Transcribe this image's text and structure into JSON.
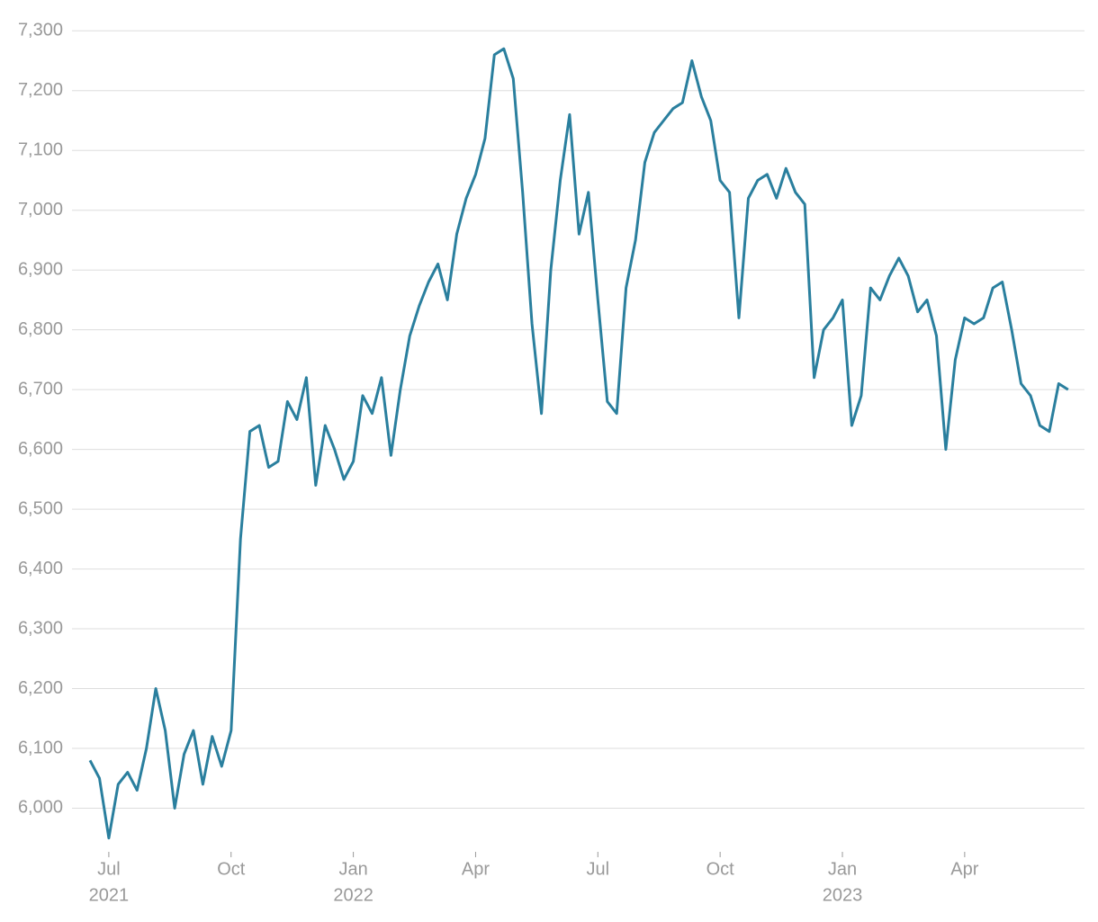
{
  "chart_data": {
    "type": "line",
    "categories": [
      null,
      null,
      "Jul",
      null,
      null,
      null,
      null,
      null,
      null,
      null,
      null,
      null,
      null,
      null,
      null,
      "Oct",
      null,
      null,
      null,
      null,
      null,
      null,
      null,
      null,
      null,
      null,
      null,
      null,
      "Jan",
      null,
      null,
      null,
      null,
      null,
      null,
      null,
      null,
      null,
      null,
      null,
      null,
      "Apr",
      null,
      null,
      null,
      null,
      null,
      null,
      null,
      null,
      null,
      null,
      null,
      null,
      "Jul",
      null,
      null,
      null,
      null,
      null,
      null,
      null,
      null,
      null,
      null,
      null,
      null,
      "Oct",
      null,
      null,
      null,
      null,
      null,
      null,
      null,
      null,
      null,
      null,
      null,
      null,
      "Jan",
      null,
      null,
      null,
      null,
      null,
      null,
      null,
      null,
      null,
      null,
      null,
      null,
      "Apr",
      null,
      null,
      null,
      null,
      null,
      null,
      null,
      null,
      null,
      null,
      null
    ],
    "x_sublabels": [
      null,
      null,
      "2021",
      null,
      null,
      null,
      null,
      null,
      null,
      null,
      null,
      null,
      null,
      null,
      null,
      null,
      null,
      null,
      null,
      null,
      null,
      null,
      null,
      null,
      null,
      null,
      null,
      null,
      "2022",
      null,
      null,
      null,
      null,
      null,
      null,
      null,
      null,
      null,
      null,
      null,
      null,
      null,
      null,
      null,
      null,
      null,
      null,
      null,
      null,
      null,
      null,
      null,
      null,
      null,
      null,
      null,
      null,
      null,
      null,
      null,
      null,
      null,
      null,
      null,
      null,
      null,
      null,
      null,
      null,
      null,
      null,
      null,
      null,
      null,
      null,
      null,
      null,
      null,
      null,
      null,
      "2023",
      null,
      null,
      null,
      null,
      null,
      null,
      null,
      null,
      null,
      null,
      null,
      null,
      null,
      null,
      null,
      null,
      null,
      null,
      null,
      null,
      null,
      null,
      null,
      null
    ],
    "series": [
      {
        "color": "#2a7f9e",
        "values": [
          6080,
          6050,
          5950,
          6040,
          6060,
          6030,
          6100,
          6200,
          6130,
          6000,
          6090,
          6130,
          6040,
          6120,
          6070,
          6130,
          6450,
          6630,
          6640,
          6570,
          6580,
          6680,
          6650,
          6720,
          6540,
          6640,
          6600,
          6550,
          6580,
          6690,
          6660,
          6720,
          6590,
          6700,
          6790,
          6840,
          6880,
          6910,
          6850,
          6960,
          7020,
          7060,
          7120,
          7260,
          7270,
          7220,
          7030,
          6810,
          6660,
          6900,
          7050,
          7160,
          6960,
          7030,
          6850,
          6680,
          6660,
          6870,
          6950,
          7080,
          7130,
          7150,
          7170,
          7180,
          7250,
          7190,
          7150,
          7050,
          7030,
          6820,
          7020,
          7050,
          7060,
          7020,
          7070,
          7030,
          7010,
          6720,
          6800,
          6820,
          6850,
          6640,
          6690,
          6870,
          6850,
          6890,
          6920,
          6890,
          6830,
          6850,
          6790,
          6600,
          6750,
          6820,
          6810,
          6820,
          6870,
          6880,
          6800,
          6710,
          6690,
          6640,
          6630,
          6710,
          6700
        ]
      }
    ],
    "ylim": [
      5930,
      7320
    ],
    "yticks": [
      {
        "value": 6000,
        "label": "6,000"
      },
      {
        "value": 6100,
        "label": "6,100"
      },
      {
        "value": 6200,
        "label": "6,200"
      },
      {
        "value": 6300,
        "label": "6,300"
      },
      {
        "value": 6400,
        "label": "6,400"
      },
      {
        "value": 6500,
        "label": "6,500"
      },
      {
        "value": 6600,
        "label": "6,600"
      },
      {
        "value": 6700,
        "label": "6,700"
      },
      {
        "value": 6800,
        "label": "6,800"
      },
      {
        "value": 6900,
        "label": "6,900"
      },
      {
        "value": 7000,
        "label": "7,000"
      },
      {
        "value": 7100,
        "label": "7,100"
      },
      {
        "value": 7200,
        "label": "7,200"
      },
      {
        "value": 7300,
        "label": "7,300"
      }
    ],
    "grid": true
  }
}
